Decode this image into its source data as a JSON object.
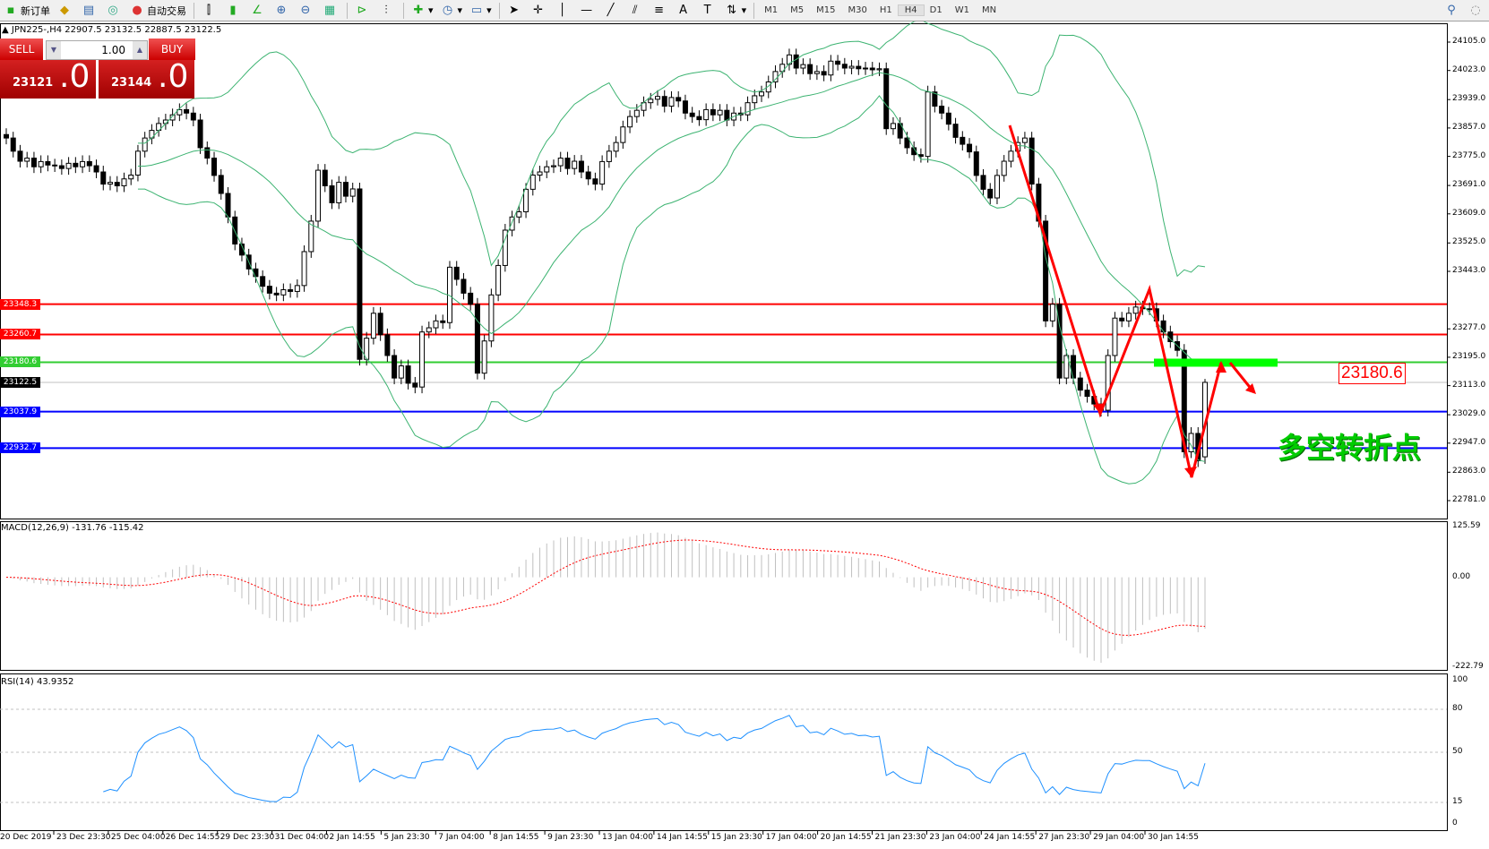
{
  "toolbar": {
    "new_order": "新订单",
    "auto_trading": "自动交易",
    "timeframes": [
      "M1",
      "M5",
      "M15",
      "M30",
      "H1",
      "H4",
      "D1",
      "W1",
      "MN"
    ],
    "active_timeframe": "H4"
  },
  "chart_header": "JPN225-,H4  22907.5 23132.5 22887.5 23122.5",
  "trade_panel": {
    "sell_label": "SELL",
    "buy_label": "BUY",
    "lot": "1.00",
    "sell_price_main": "23121",
    "sell_price_frac": ".0",
    "buy_price_main": "23144",
    "buy_price_frac": ".0"
  },
  "annotations": {
    "level_box": "23180.6",
    "turning_point_text": "多空转折点"
  },
  "colors": {
    "band": "#3cb371",
    "bull": "#ffffff",
    "bear": "#000000",
    "rsi": "#1e90ff",
    "signal": "#ff0000",
    "hist": "#c0c0c0",
    "arrow": "#ff0000",
    "green_zone": "#00ff00"
  },
  "chart_data": {
    "type": "candlestick",
    "symbol": "JPN225-",
    "timeframe": "H4",
    "last_bar": {
      "open": 22907.5,
      "high": 23132.5,
      "low": 22887.5,
      "close": 23122.5
    },
    "ylim": [
      22781.0,
      24105.0
    ],
    "y_ticks": [
      "24105.0",
      "24023.0",
      "23939.0",
      "23857.0",
      "23775.0",
      "23691.0",
      "23609.0",
      "23525.0",
      "23443.0",
      "23277.0",
      "23195.0",
      "23113.0",
      "23029.0",
      "22947.0",
      "22863.0",
      "22781.0"
    ],
    "x_ticks": [
      "20 Dec 2019",
      "23 Dec 23:30",
      "25 Dec 04:00",
      "26 Dec 14:55",
      "29 Dec 23:30",
      "31 Dec 04:00",
      "2 Jan 14:55",
      "5 Jan 23:30",
      "7 Jan 04:00",
      "8 Jan 14:55",
      "9 Jan 23:30",
      "13 Jan 04:00",
      "14 Jan 14:55",
      "15 Jan 23:30",
      "17 Jan 04:00",
      "20 Jan 14:55",
      "21 Jan 23:30",
      "23 Jan 04:00",
      "24 Jan 14:55",
      "27 Jan 23:30",
      "29 Jan 04:00",
      "30 Jan 14:55"
    ],
    "close": [
      23828,
      23790,
      23761,
      23770,
      23745,
      23760,
      23750,
      23748,
      23740,
      23755,
      23745,
      23760,
      23748,
      23730,
      23695,
      23700,
      23690,
      23710,
      23721,
      23790,
      23828,
      23850,
      23870,
      23880,
      23895,
      23910,
      23900,
      23880,
      23800,
      23770,
      23720,
      23668,
      23600,
      23522,
      23490,
      23450,
      23428,
      23400,
      23380,
      23375,
      23390,
      23385,
      23402,
      23500,
      23588,
      23735,
      23690,
      23641,
      23700,
      23660,
      23681,
      23189,
      23250,
      23322,
      23260,
      23200,
      23135,
      23170,
      23120,
      23109,
      23268,
      23280,
      23300,
      23295,
      23455,
      23420,
      23380,
      23348,
      23149,
      23242,
      23375,
      23460,
      23562,
      23600,
      23615,
      23680,
      23721,
      23730,
      23745,
      23748,
      23770,
      23740,
      23761,
      23730,
      23710,
      23695,
      23760,
      23790,
      23815,
      23860,
      23890,
      23908,
      23930,
      23940,
      23948,
      23920,
      23945,
      23935,
      23900,
      23890,
      23881,
      23910,
      23895,
      23908,
      23880,
      23900,
      23895,
      23930,
      23950,
      23961,
      23990,
      24020,
      24041,
      24068,
      24030,
      24040,
      24014,
      24020,
      24010,
      24050,
      24041,
      24030,
      24035,
      24028,
      24030,
      24025,
      24028,
      23855,
      23870,
      23828,
      23800,
      23780,
      23775,
      23961,
      23920,
      23900,
      23868,
      23830,
      23810,
      23788,
      23720,
      23680,
      23655,
      23720,
      23761,
      23790,
      23815,
      23828,
      23695,
      23588,
      23300,
      23348,
      23135,
      23200,
      23135,
      23100,
      23082,
      23060,
      23042,
      23200,
      23308,
      23300,
      23322,
      23340,
      23335,
      23335,
      23300,
      23268,
      23240,
      23215,
      22922,
      22975,
      22896,
      23122.5
    ],
    "bollinger": {
      "period": 20,
      "deviation": 2
    },
    "horizontal_levels": [
      {
        "value": "23348.3",
        "color": "#ff0000"
      },
      {
        "value": "23260.7",
        "color": "#ff0000"
      },
      {
        "value": "23180.6",
        "color": "#32cd32"
      },
      {
        "value": "23037.9",
        "color": "#0000ff"
      },
      {
        "value": "22932.7",
        "color": "#0000ff"
      }
    ],
    "current_price": "23122.5",
    "macd": {
      "label": "MACD(12,26,9) -131.76 -115.42",
      "ylim": [
        -222.79,
        125.59
      ],
      "y_ticks": [
        "125.59",
        "0.00",
        "-222.79"
      ]
    },
    "rsi": {
      "label": "RSI(14) 43.9352",
      "ylim": [
        0,
        100
      ],
      "levels": [
        80,
        50,
        15
      ],
      "y_ticks": [
        "100",
        "80",
        "50",
        "15",
        "0"
      ]
    }
  }
}
